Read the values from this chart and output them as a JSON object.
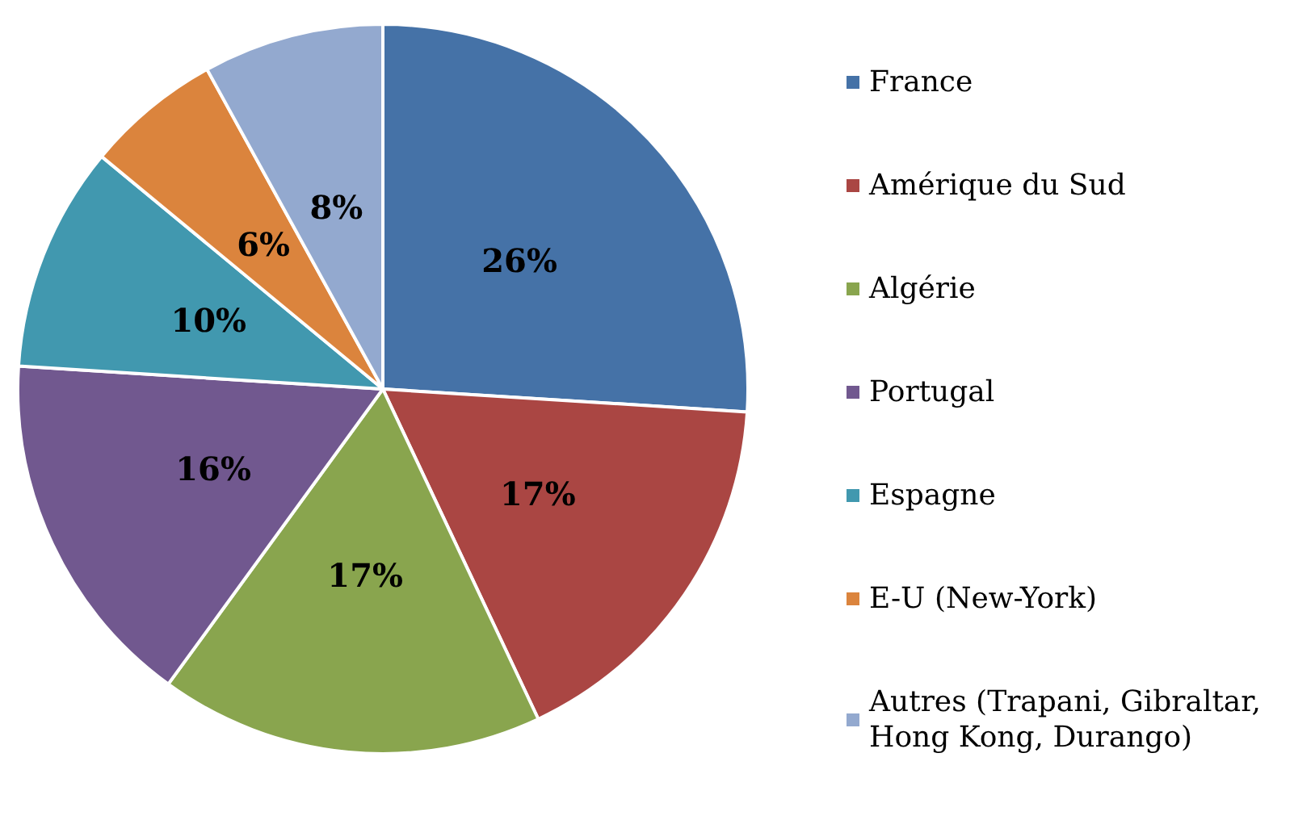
{
  "chart_data": {
    "type": "pie",
    "categories": [
      "France",
      "Amérique du Sud",
      "Algérie",
      "Portugal",
      "Espagne",
      "E-U (New-York)",
      "Autres (Trapani, Gibraltar, Hong Kong, Durango)"
    ],
    "values": [
      26,
      17,
      17,
      16,
      10,
      6,
      8
    ],
    "colors": [
      "#4572a7",
      "#aa4643",
      "#89a54e",
      "#71588f",
      "#4198af",
      "#db843d",
      "#93a9cf"
    ],
    "value_labels": [
      "26%",
      "17%",
      "17%",
      "16%",
      "10%",
      "6%",
      "8%"
    ],
    "legend": "right"
  }
}
